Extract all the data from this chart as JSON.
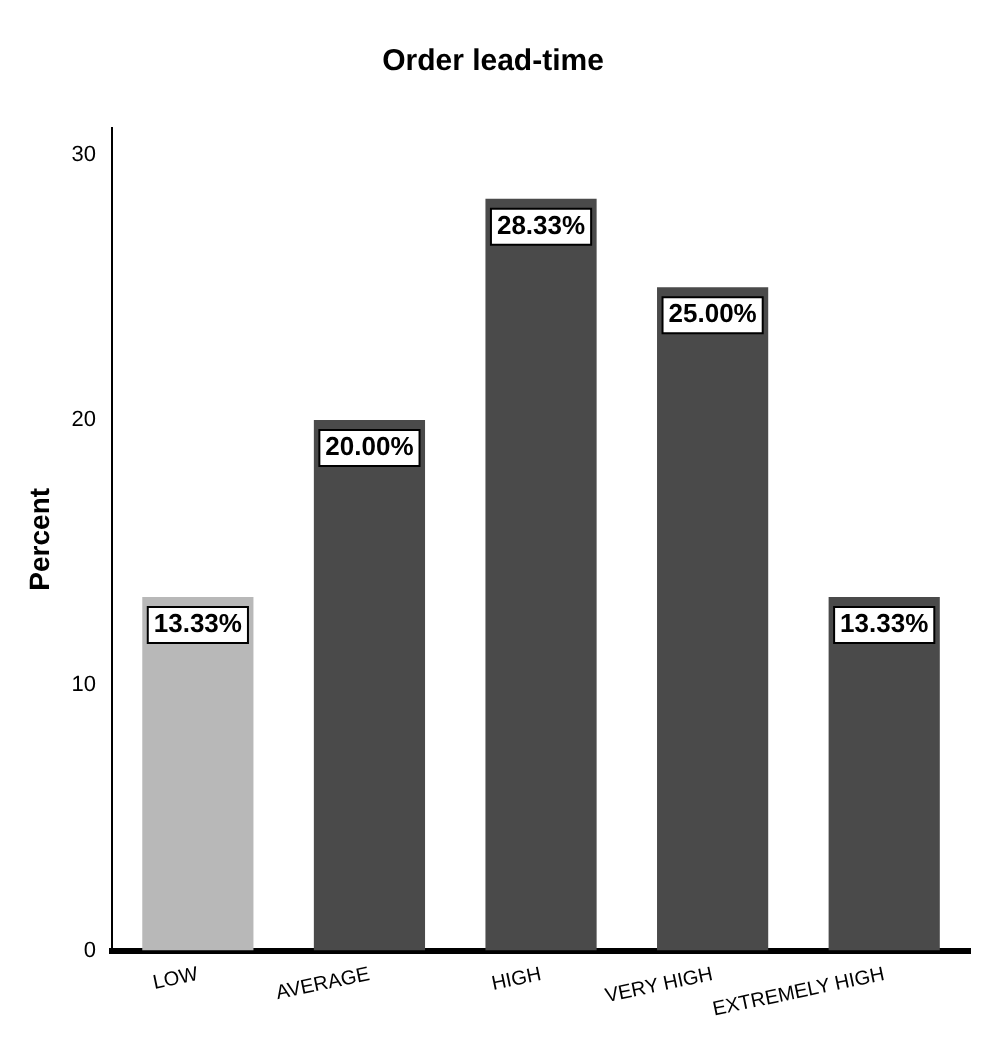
{
  "chart_data": {
    "type": "bar",
    "title": "Order lead-time",
    "ylabel": "Percent",
    "categories": [
      "LOW",
      "AVERAGE",
      "HIGH",
      "VERY HIGH",
      "EXTREMELY HIGH"
    ],
    "values": [
      13.33,
      20.0,
      28.33,
      25.0,
      13.33
    ],
    "colors": [
      "#b8b8b8",
      "#4a4a4a",
      "#4a4a4a",
      "#4a4a4a",
      "#4a4a4a"
    ],
    "value_labels": [
      "13.33%",
      "20.00%",
      "28.33%",
      "25.00%",
      "13.33%"
    ],
    "ylim": [
      0,
      31
    ],
    "yticks": [
      0,
      10,
      20,
      30
    ],
    "grid": false,
    "legend": false
  }
}
